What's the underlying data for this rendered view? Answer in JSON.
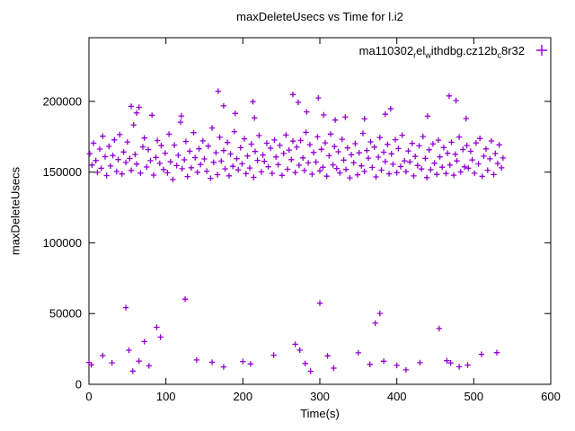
{
  "chart_data": {
    "type": "scatter",
    "title": "maxDeleteUsecs vs Time for l.i2",
    "xlabel": "Time(s)",
    "ylabel": "maxDeleteUsecs",
    "xlim": [
      0,
      600
    ],
    "ylim": [
      0,
      245000
    ],
    "xticks": [
      0,
      100,
      200,
      300,
      400,
      500,
      600
    ],
    "yticks": [
      0,
      50000,
      100000,
      150000,
      200000
    ],
    "grid": false,
    "legend_position": "top-right-inside",
    "legend_segments": [
      {
        "text": "ma110302"
      },
      {
        "text": "r",
        "sub": true
      },
      {
        "text": "el"
      },
      {
        "text": "w",
        "sub": true
      },
      {
        "text": "ithdbg.cz12b"
      },
      {
        "text": "c",
        "sub": true
      },
      {
        "text": "8r32"
      }
    ],
    "series": [
      {
        "name": "ma110302_rel_withdbg.cz12b_c8r32",
        "color": "#9400d3",
        "marker": "plus",
        "points": [
          [
            1,
            163000
          ],
          [
            4,
            155000
          ],
          [
            6,
            170500
          ],
          [
            9,
            158200
          ],
          [
            11,
            149800
          ],
          [
            14,
            166300
          ],
          [
            16,
            152700
          ],
          [
            18,
            175400
          ],
          [
            21,
            160900
          ],
          [
            23,
            147600
          ],
          [
            26,
            168200
          ],
          [
            28,
            154300
          ],
          [
            31,
            161700
          ],
          [
            33,
            172800
          ],
          [
            36,
            150400
          ],
          [
            38,
            158900
          ],
          [
            40,
            176500
          ],
          [
            43,
            148700
          ],
          [
            45,
            164200
          ],
          [
            48,
            156800
          ],
          [
            50,
            171300
          ],
          [
            53,
            159600
          ],
          [
            55,
            151200
          ],
          [
            58,
            183400
          ],
          [
            60,
            162500
          ],
          [
            62,
            155700
          ],
          [
            65,
            195800
          ],
          [
            67,
            149300
          ],
          [
            70,
            167800
          ],
          [
            72,
            174100
          ],
          [
            75,
            153600
          ],
          [
            77,
            165900
          ],
          [
            80,
            158100
          ],
          [
            82,
            190200
          ],
          [
            84,
            147900
          ],
          [
            87,
            160400
          ],
          [
            89,
            172300
          ],
          [
            92,
            156200
          ],
          [
            94,
            168700
          ],
          [
            97,
            151800
          ],
          [
            99,
            163400
          ],
          [
            102,
            149500
          ],
          [
            104,
            176800
          ],
          [
            106,
            157300
          ],
          [
            109,
            144800
          ],
          [
            111,
            169100
          ],
          [
            114,
            154600
          ],
          [
            116,
            161900
          ],
          [
            119,
            185300
          ],
          [
            121,
            152400
          ],
          [
            124,
            158700
          ],
          [
            126,
            171600
          ],
          [
            128,
            146900
          ],
          [
            131,
            164800
          ],
          [
            133,
            153100
          ],
          [
            136,
            177900
          ],
          [
            138,
            160200
          ],
          [
            141,
            149900
          ],
          [
            143,
            166500
          ],
          [
            145,
            155400
          ],
          [
            148,
            172100
          ],
          [
            150,
            159300
          ],
          [
            153,
            150700
          ],
          [
            155,
            168400
          ],
          [
            158,
            145600
          ],
          [
            160,
            181200
          ],
          [
            162,
            156900
          ],
          [
            165,
            163700
          ],
          [
            167,
            148200
          ],
          [
            170,
            174600
          ],
          [
            172,
            157800
          ],
          [
            175,
            165200
          ],
          [
            177,
            152300
          ],
          [
            180,
            170900
          ],
          [
            182,
            147400
          ],
          [
            184,
            162800
          ],
          [
            187,
            154100
          ],
          [
            189,
            178600
          ],
          [
            192,
            159500
          ],
          [
            194,
            151600
          ],
          [
            197,
            167300
          ],
          [
            199,
            155900
          ],
          [
            202,
            173500
          ],
          [
            204,
            148900
          ],
          [
            206,
            161400
          ],
          [
            209,
            152900
          ],
          [
            211,
            169800
          ],
          [
            214,
            146300
          ],
          [
            216,
            164600
          ],
          [
            219,
            158300
          ],
          [
            221,
            175800
          ],
          [
            224,
            150200
          ],
          [
            226,
            162100
          ],
          [
            228,
            157600
          ],
          [
            231,
            170400
          ],
          [
            233,
            153800
          ],
          [
            236,
            166900
          ],
          [
            238,
            149100
          ],
          [
            241,
            172700
          ],
          [
            243,
            160700
          ],
          [
            246,
            155300
          ],
          [
            248,
            168900
          ],
          [
            251,
            147700
          ],
          [
            253,
            163200
          ],
          [
            256,
            176200
          ],
          [
            258,
            152000
          ],
          [
            260,
            165600
          ],
          [
            263,
            158800
          ],
          [
            265,
            171900
          ],
          [
            268,
            149700
          ],
          [
            270,
            167600
          ],
          [
            273,
            154900
          ],
          [
            275,
            172400
          ],
          [
            278,
            160100
          ],
          [
            280,
            151100
          ],
          [
            282,
            178100
          ],
          [
            285,
            156500
          ],
          [
            287,
            169400
          ],
          [
            290,
            148500
          ],
          [
            292,
            163900
          ],
          [
            295,
            157100
          ],
          [
            297,
            174900
          ],
          [
            300,
            150900
          ],
          [
            302,
            166100
          ],
          [
            304,
            153400
          ],
          [
            307,
            170700
          ],
          [
            309,
            147100
          ],
          [
            312,
            161600
          ],
          [
            314,
            176900
          ],
          [
            317,
            155100
          ],
          [
            319,
            168100
          ],
          [
            322,
            152600
          ],
          [
            324,
            164400
          ],
          [
            326,
            149400
          ],
          [
            329,
            173200
          ],
          [
            331,
            158500
          ],
          [
            334,
            151900
          ],
          [
            336,
            167100
          ],
          [
            339,
            145900
          ],
          [
            341,
            162300
          ],
          [
            344,
            156600
          ],
          [
            346,
            170100
          ],
          [
            349,
            148100
          ],
          [
            351,
            163600
          ],
          [
            354,
            154400
          ],
          [
            356,
            177400
          ],
          [
            358,
            150500
          ],
          [
            361,
            165300
          ],
          [
            363,
            159900
          ],
          [
            366,
            171400
          ],
          [
            368,
            153300
          ],
          [
            371,
            167700
          ],
          [
            373,
            146600
          ],
          [
            376,
            160600
          ],
          [
            378,
            174400
          ],
          [
            380,
            151400
          ],
          [
            383,
            164100
          ],
          [
            385,
            157500
          ],
          [
            388,
            169600
          ],
          [
            390,
            148800
          ],
          [
            393,
            162900
          ],
          [
            395,
            155600
          ],
          [
            398,
            172900
          ],
          [
            400,
            149600
          ],
          [
            402,
            166700
          ],
          [
            405,
            153900
          ],
          [
            407,
            176100
          ],
          [
            410,
            158000
          ],
          [
            412,
            150300
          ],
          [
            415,
            164900
          ],
          [
            417,
            157200
          ],
          [
            420,
            170300
          ],
          [
            422,
            147300
          ],
          [
            424,
            161100
          ],
          [
            427,
            154700
          ],
          [
            429,
            168600
          ],
          [
            432,
            152200
          ],
          [
            434,
            175100
          ],
          [
            437,
            159700
          ],
          [
            439,
            146100
          ],
          [
            442,
            165800
          ],
          [
            444,
            151700
          ],
          [
            447,
            169900
          ],
          [
            449,
            156300
          ],
          [
            452,
            148400
          ],
          [
            454,
            172600
          ],
          [
            456,
            160800
          ],
          [
            459,
            153500
          ],
          [
            461,
            167400
          ],
          [
            464,
            149000
          ],
          [
            466,
            163300
          ],
          [
            469,
            155000
          ],
          [
            471,
            171100
          ],
          [
            474,
            147800
          ],
          [
            476,
            162600
          ],
          [
            478,
            157900
          ],
          [
            481,
            174800
          ],
          [
            483,
            150100
          ],
          [
            486,
            166000
          ],
          [
            488,
            153700
          ],
          [
            491,
            168800
          ],
          [
            493,
            152800
          ],
          [
            496,
            164700
          ],
          [
            498,
            158600
          ],
          [
            501,
            149200
          ],
          [
            503,
            170600
          ],
          [
            506,
            155800
          ],
          [
            508,
            173800
          ],
          [
            511,
            147000
          ],
          [
            513,
            161300
          ],
          [
            516,
            166400
          ],
          [
            518,
            151300
          ],
          [
            521,
            159400
          ],
          [
            523,
            172000
          ],
          [
            526,
            148300
          ],
          [
            528,
            163100
          ],
          [
            531,
            156100
          ],
          [
            533,
            169300
          ],
          [
            536,
            153000
          ],
          [
            538,
            160000
          ],
          [
            55,
            196500
          ],
          [
            62,
            191800
          ],
          [
            120,
            189700
          ],
          [
            168,
            207200
          ],
          [
            175,
            196800
          ],
          [
            190,
            191500
          ],
          [
            213,
            199800
          ],
          [
            215,
            188300
          ],
          [
            265,
            204800
          ],
          [
            272,
            199300
          ],
          [
            283,
            192600
          ],
          [
            298,
            202400
          ],
          [
            305,
            190400
          ],
          [
            320,
            186800
          ],
          [
            333,
            188900
          ],
          [
            358,
            187600
          ],
          [
            385,
            190900
          ],
          [
            392,
            194700
          ],
          [
            440,
            189500
          ],
          [
            468,
            203900
          ],
          [
            477,
            200600
          ],
          [
            490,
            187900
          ],
          [
            0,
            15500
          ],
          [
            3,
            13800
          ],
          [
            18,
            20300
          ],
          [
            30,
            15200
          ],
          [
            48,
            54200
          ],
          [
            52,
            24100
          ],
          [
            57,
            9300
          ],
          [
            65,
            16400
          ],
          [
            72,
            30200
          ],
          [
            78,
            13100
          ],
          [
            88,
            40300
          ],
          [
            93,
            33400
          ],
          [
            125,
            60200
          ],
          [
            140,
            17200
          ],
          [
            160,
            15600
          ],
          [
            175,
            12300
          ],
          [
            200,
            16100
          ],
          [
            210,
            14400
          ],
          [
            240,
            20600
          ],
          [
            268,
            28300
          ],
          [
            274,
            24200
          ],
          [
            281,
            14700
          ],
          [
            288,
            9200
          ],
          [
            300,
            57400
          ],
          [
            310,
            20100
          ],
          [
            318,
            11400
          ],
          [
            350,
            22300
          ],
          [
            365,
            14100
          ],
          [
            372,
            43200
          ],
          [
            378,
            50100
          ],
          [
            383,
            16300
          ],
          [
            400,
            13400
          ],
          [
            412,
            10200
          ],
          [
            430,
            15300
          ],
          [
            455,
            39400
          ],
          [
            465,
            16700
          ],
          [
            470,
            15100
          ],
          [
            481,
            12400
          ],
          [
            492,
            13600
          ],
          [
            510,
            21200
          ],
          [
            530,
            22400
          ]
        ]
      }
    ]
  }
}
